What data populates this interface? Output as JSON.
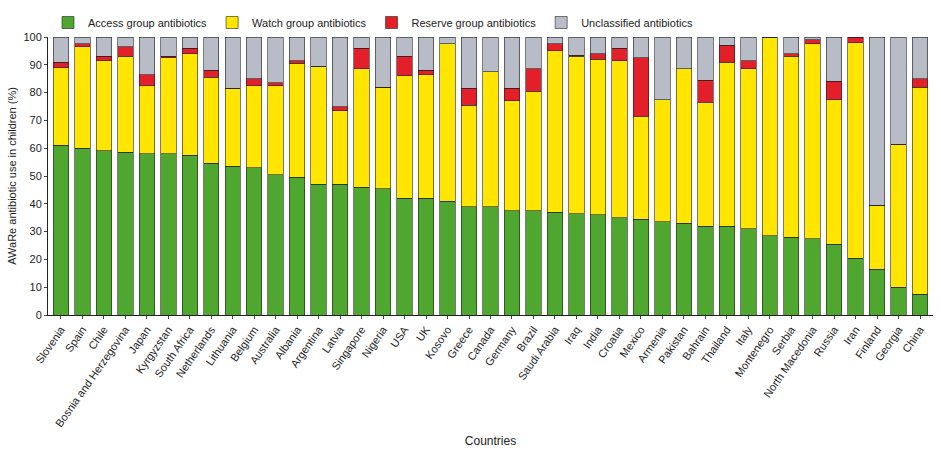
{
  "chart_data": {
    "type": "bar",
    "stacked": true,
    "legend": "top",
    "xlabel": "Countries",
    "ylabel": "AWaRe antibiotic use in children (%)",
    "ylim": [
      0,
      100
    ],
    "yticks": [
      0,
      10,
      20,
      30,
      40,
      50,
      60,
      70,
      80,
      90,
      100
    ],
    "categories": [
      "Slovenia",
      "Spain",
      "Chile",
      "Bosnia and Herzegovina",
      "Japan",
      "Kyrgyzstan",
      "South Africa",
      "Netherlands",
      "Lithuania",
      "Belgium",
      "Australia",
      "Albania",
      "Argentina",
      "Latvia",
      "Singapore",
      "Nigeria",
      "USA",
      "UK",
      "Kosovo",
      "Greece",
      "Canada",
      "Germany",
      "Brazil",
      "Saudi Arabia",
      "Iraq",
      "India",
      "Croatia",
      "Mexico",
      "Armenia",
      "Pakistan",
      "Bahrain",
      "Thailand",
      "Italy",
      "Montenegro",
      "Serbia",
      "North Macedonia",
      "Russia",
      "Iran",
      "Finland",
      "Georgia",
      "China"
    ],
    "series": [
      {
        "name": "Access group antibiotics",
        "color": "#4fa72f",
        "values": [
          61,
          60,
          59,
          58.5,
          58,
          58,
          57.5,
          54.5,
          53.5,
          53,
          50.5,
          49.5,
          47,
          47,
          46,
          45.5,
          42,
          42,
          41,
          39,
          39,
          37.5,
          37.5,
          37,
          36.5,
          36,
          35,
          34.5,
          33.5,
          33,
          32,
          32,
          31,
          28.5,
          28,
          27.5,
          25.5,
          20.5,
          16.5,
          10,
          7.5
        ]
      },
      {
        "name": "Watch group antibiotics",
        "color": "#ffe500",
        "values": [
          28,
          36.5,
          32.5,
          34.5,
          24.5,
          34.5,
          36.5,
          31,
          28,
          29.5,
          32,
          41,
          42.5,
          26.5,
          42.5,
          36.5,
          44,
          44.5,
          56.5,
          36.5,
          48.5,
          39.5,
          43,
          58,
          56.5,
          56,
          56.5,
          37,
          44,
          55.5,
          44.5,
          59,
          57.5,
          71.5,
          65,
          70,
          52,
          77.5,
          23,
          51.5,
          74.5
        ]
      },
      {
        "name": "Reserve group antibiotics",
        "color": "#e3202a",
        "values": [
          2,
          1,
          1.5,
          3.5,
          4,
          0.5,
          2,
          2.5,
          0,
          2.5,
          1,
          1,
          0,
          1.5,
          7.5,
          0,
          7,
          1.5,
          0,
          6,
          0,
          4.5,
          8,
          2.5,
          0.5,
          2,
          4.5,
          21,
          0,
          0,
          8,
          6,
          3,
          0,
          1,
          1.5,
          6.5,
          2,
          0,
          0,
          3
        ]
      },
      {
        "name": "Unclassified antibiotics",
        "color": "#b8bcc6",
        "values": [
          9,
          2.5,
          7,
          3.5,
          13.5,
          7,
          4,
          12,
          18.5,
          15,
          16.5,
          8.5,
          10.5,
          25,
          4,
          18,
          7,
          12,
          2.5,
          18.5,
          12.5,
          18.5,
          11.5,
          2.5,
          6.5,
          6,
          4,
          7.5,
          22.5,
          11.5,
          15.5,
          3,
          8.5,
          0,
          6,
          1,
          16,
          0,
          60.5,
          38.5,
          15
        ]
      }
    ]
  }
}
